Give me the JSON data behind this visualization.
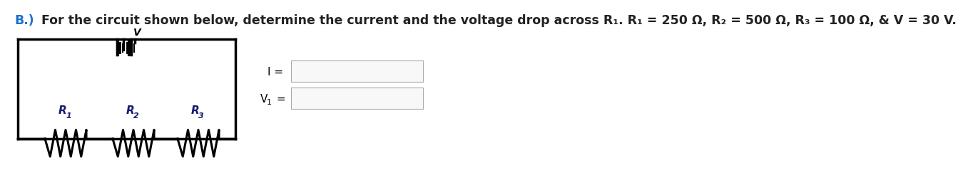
{
  "title_B": "B.)",
  "title_text": " For the circuit shown below, determine the current and the voltage drop across R₁. R₁ = 250 Ω, R₂ = 500 Ω, R₃ = 100 Ω, & V = 30 V.",
  "title_color_B": "#1a6fcc",
  "title_color_text": "#222222",
  "title_fontsize": 12.5,
  "bg_color": "#ffffff",
  "label_R1": "R",
  "label_R2": "R",
  "label_R3": "R",
  "sub_R1": "1",
  "sub_R2": "2",
  "sub_R3": "3",
  "label_I": "I =",
  "label_V1": "V",
  "sub_V1": "1",
  "eq_V1": " ="
}
